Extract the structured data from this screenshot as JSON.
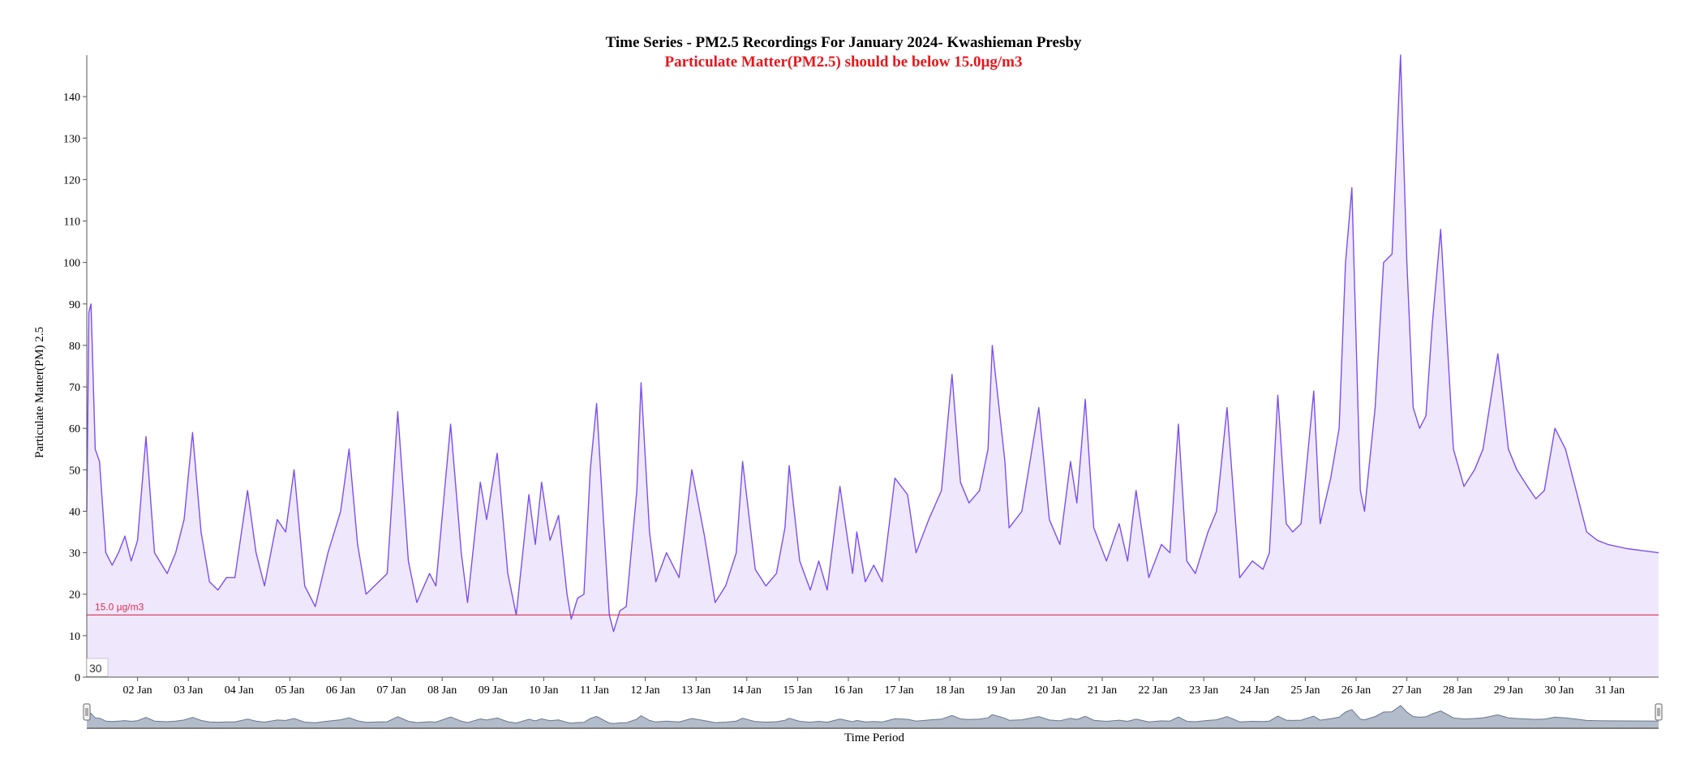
{
  "colors": {
    "line": "#7b4ff0",
    "area": "#efe8fd",
    "threshold": "#d9304f",
    "subtitle": "#e8161b",
    "navigator_fill": "#b3bccb",
    "navigator_line": "#6b778d"
  },
  "navigator": {
    "window_label": "30"
  },
  "chart_data": {
    "type": "area",
    "title": "Time Series - PM2.5 Recordings For January 2024- Kwashieman Presby",
    "subtitle": "Particulate Matter(PM2.5) should be below 15.0µg/m3",
    "xlabel": "Time Period",
    "ylabel": "Particulate Matter(PM) 2.5",
    "ylim": [
      0,
      150
    ],
    "yticks": [
      0,
      10,
      20,
      30,
      40,
      50,
      60,
      70,
      80,
      90,
      100,
      110,
      120,
      130,
      140
    ],
    "xlim": [
      "2024-01-01 00:00",
      "2024-01-31 23:00"
    ],
    "xticks": [
      "02 Jan",
      "03 Jan",
      "04 Jan",
      "05 Jan",
      "06 Jan",
      "07 Jan",
      "08 Jan",
      "09 Jan",
      "10 Jan",
      "11 Jan",
      "12 Jan",
      "13 Jan",
      "14 Jan",
      "15 Jan",
      "16 Jan",
      "17 Jan",
      "18 Jan",
      "19 Jan",
      "20 Jan",
      "21 Jan",
      "22 Jan",
      "23 Jan",
      "24 Jan",
      "25 Jan",
      "26 Jan",
      "27 Jan",
      "28 Jan",
      "29 Jan",
      "30 Jan",
      "31 Jan"
    ],
    "threshold": {
      "value": 15.0,
      "label": "15.0 µg/m3"
    },
    "series": [
      {
        "points": [
          [
            "2024-01-01 00:00",
            40
          ],
          [
            "2024-01-01 01:00",
            88
          ],
          [
            "2024-01-01 02:00",
            90
          ],
          [
            "2024-01-01 04:00",
            55
          ],
          [
            "2024-01-01 06:00",
            52
          ],
          [
            "2024-01-01 09:00",
            30
          ],
          [
            "2024-01-01 12:00",
            27
          ],
          [
            "2024-01-01 15:00",
            30
          ],
          [
            "2024-01-01 18:00",
            34
          ],
          [
            "2024-01-01 21:00",
            28
          ],
          [
            "2024-01-02 00:00",
            33
          ],
          [
            "2024-01-02 04:00",
            58
          ],
          [
            "2024-01-02 08:00",
            30
          ],
          [
            "2024-01-02 14:00",
            25
          ],
          [
            "2024-01-02 18:00",
            30
          ],
          [
            "2024-01-02 22:00",
            38
          ],
          [
            "2024-01-03 02:00",
            59
          ],
          [
            "2024-01-03 06:00",
            35
          ],
          [
            "2024-01-03 10:00",
            23
          ],
          [
            "2024-01-03 14:00",
            21
          ],
          [
            "2024-01-03 18:00",
            24
          ],
          [
            "2024-01-03 22:00",
            24
          ],
          [
            "2024-01-04 04:00",
            45
          ],
          [
            "2024-01-04 08:00",
            30
          ],
          [
            "2024-01-04 12:00",
            22
          ],
          [
            "2024-01-04 18:00",
            38
          ],
          [
            "2024-01-04 22:00",
            35
          ],
          [
            "2024-01-05 02:00",
            50
          ],
          [
            "2024-01-05 07:00",
            22
          ],
          [
            "2024-01-05 12:00",
            17
          ],
          [
            "2024-01-05 18:00",
            30
          ],
          [
            "2024-01-06 00:00",
            40
          ],
          [
            "2024-01-06 04:00",
            55
          ],
          [
            "2024-01-06 08:00",
            32
          ],
          [
            "2024-01-06 12:00",
            20
          ],
          [
            "2024-01-06 18:00",
            23
          ],
          [
            "2024-01-06 22:00",
            25
          ],
          [
            "2024-01-07 03:00",
            64
          ],
          [
            "2024-01-07 08:00",
            28
          ],
          [
            "2024-01-07 12:00",
            18
          ],
          [
            "2024-01-07 18:00",
            25
          ],
          [
            "2024-01-07 21:00",
            22
          ],
          [
            "2024-01-08 04:00",
            61
          ],
          [
            "2024-01-08 09:00",
            30
          ],
          [
            "2024-01-08 12:00",
            18
          ],
          [
            "2024-01-08 18:00",
            47
          ],
          [
            "2024-01-08 21:00",
            38
          ],
          [
            "2024-01-09 02:00",
            54
          ],
          [
            "2024-01-09 07:00",
            25
          ],
          [
            "2024-01-09 11:00",
            15
          ],
          [
            "2024-01-09 17:00",
            44
          ],
          [
            "2024-01-09 20:00",
            32
          ],
          [
            "2024-01-09 23:00",
            47
          ],
          [
            "2024-01-10 03:00",
            33
          ],
          [
            "2024-01-10 07:00",
            39
          ],
          [
            "2024-01-10 11:00",
            20
          ],
          [
            "2024-01-10 13:00",
            14
          ],
          [
            "2024-01-10 16:00",
            19
          ],
          [
            "2024-01-10 19:00",
            20
          ],
          [
            "2024-01-10 22:00",
            50
          ],
          [
            "2024-01-11 01:00",
            66
          ],
          [
            "2024-01-11 04:00",
            40
          ],
          [
            "2024-01-11 07:00",
            15
          ],
          [
            "2024-01-11 09:00",
            11
          ],
          [
            "2024-01-11 12:00",
            16
          ],
          [
            "2024-01-11 15:00",
            17
          ],
          [
            "2024-01-11 20:00",
            45
          ],
          [
            "2024-01-11 22:00",
            71
          ],
          [
            "2024-01-12 02:00",
            35
          ],
          [
            "2024-01-12 05:00",
            23
          ],
          [
            "2024-01-12 10:00",
            30
          ],
          [
            "2024-01-12 16:00",
            24
          ],
          [
            "2024-01-12 22:00",
            50
          ],
          [
            "2024-01-13 04:00",
            34
          ],
          [
            "2024-01-13 09:00",
            18
          ],
          [
            "2024-01-13 14:00",
            22
          ],
          [
            "2024-01-13 19:00",
            30
          ],
          [
            "2024-01-13 22:00",
            52
          ],
          [
            "2024-01-14 04:00",
            26
          ],
          [
            "2024-01-14 09:00",
            22
          ],
          [
            "2024-01-14 14:00",
            25
          ],
          [
            "2024-01-14 18:00",
            36
          ],
          [
            "2024-01-14 20:00",
            51
          ],
          [
            "2024-01-15 01:00",
            28
          ],
          [
            "2024-01-15 06:00",
            21
          ],
          [
            "2024-01-15 10:00",
            28
          ],
          [
            "2024-01-15 14:00",
            21
          ],
          [
            "2024-01-15 20:00",
            46
          ],
          [
            "2024-01-16 02:00",
            25
          ],
          [
            "2024-01-16 04:00",
            35
          ],
          [
            "2024-01-16 08:00",
            23
          ],
          [
            "2024-01-16 12:00",
            27
          ],
          [
            "2024-01-16 16:00",
            23
          ],
          [
            "2024-01-16 22:00",
            48
          ],
          [
            "2024-01-17 04:00",
            44
          ],
          [
            "2024-01-17 08:00",
            30
          ],
          [
            "2024-01-17 14:00",
            38
          ],
          [
            "2024-01-17 20:00",
            45
          ],
          [
            "2024-01-18 01:00",
            73
          ],
          [
            "2024-01-18 05:00",
            47
          ],
          [
            "2024-01-18 09:00",
            42
          ],
          [
            "2024-01-18 14:00",
            45
          ],
          [
            "2024-01-18 18:00",
            55
          ],
          [
            "2024-01-18 20:00",
            80
          ],
          [
            "2024-01-19 02:00",
            52
          ],
          [
            "2024-01-19 04:00",
            36
          ],
          [
            "2024-01-19 10:00",
            40
          ],
          [
            "2024-01-19 18:00",
            65
          ],
          [
            "2024-01-19 23:00",
            38
          ],
          [
            "2024-01-20 04:00",
            32
          ],
          [
            "2024-01-20 09:00",
            52
          ],
          [
            "2024-01-20 12:00",
            42
          ],
          [
            "2024-01-20 16:00",
            67
          ],
          [
            "2024-01-20 20:00",
            36
          ],
          [
            "2024-01-21 02:00",
            28
          ],
          [
            "2024-01-21 08:00",
            37
          ],
          [
            "2024-01-21 12:00",
            28
          ],
          [
            "2024-01-21 16:00",
            45
          ],
          [
            "2024-01-21 22:00",
            24
          ],
          [
            "2024-01-22 04:00",
            32
          ],
          [
            "2024-01-22 08:00",
            30
          ],
          [
            "2024-01-22 12:00",
            61
          ],
          [
            "2024-01-22 16:00",
            28
          ],
          [
            "2024-01-22 20:00",
            25
          ],
          [
            "2024-01-23 02:00",
            35
          ],
          [
            "2024-01-23 06:00",
            40
          ],
          [
            "2024-01-23 11:00",
            65
          ],
          [
            "2024-01-23 17:00",
            24
          ],
          [
            "2024-01-23 23:00",
            28
          ],
          [
            "2024-01-24 04:00",
            26
          ],
          [
            "2024-01-24 07:00",
            30
          ],
          [
            "2024-01-24 11:00",
            68
          ],
          [
            "2024-01-24 15:00",
            37
          ],
          [
            "2024-01-24 18:00",
            35
          ],
          [
            "2024-01-24 22:00",
            37
          ],
          [
            "2024-01-25 04:00",
            69
          ],
          [
            "2024-01-25 07:00",
            37
          ],
          [
            "2024-01-25 12:00",
            48
          ],
          [
            "2024-01-25 16:00",
            60
          ],
          [
            "2024-01-25 19:00",
            100
          ],
          [
            "2024-01-25 22:00",
            118
          ],
          [
            "2024-01-26 02:00",
            45
          ],
          [
            "2024-01-26 04:00",
            40
          ],
          [
            "2024-01-26 09:00",
            65
          ],
          [
            "2024-01-26 13:00",
            100
          ],
          [
            "2024-01-26 17:00",
            102
          ],
          [
            "2024-01-26 21:00",
            150
          ],
          [
            "2024-01-27 00:00",
            100
          ],
          [
            "2024-01-27 03:00",
            65
          ],
          [
            "2024-01-27 06:00",
            60
          ],
          [
            "2024-01-27 09:00",
            63
          ],
          [
            "2024-01-27 12:00",
            85
          ],
          [
            "2024-01-27 16:00",
            108
          ],
          [
            "2024-01-27 22:00",
            55
          ],
          [
            "2024-01-28 03:00",
            46
          ],
          [
            "2024-01-28 08:00",
            50
          ],
          [
            "2024-01-28 12:00",
            55
          ],
          [
            "2024-01-28 19:00",
            78
          ],
          [
            "2024-01-29 00:00",
            55
          ],
          [
            "2024-01-29 04:00",
            50
          ],
          [
            "2024-01-29 09:00",
            46
          ],
          [
            "2024-01-29 13:00",
            43
          ],
          [
            "2024-01-29 17:00",
            45
          ],
          [
            "2024-01-29 22:00",
            60
          ],
          [
            "2024-01-30 03:00",
            55
          ],
          [
            "2024-01-30 08:00",
            45
          ],
          [
            "2024-01-30 13:00",
            35
          ],
          [
            "2024-01-30 18:00",
            33
          ],
          [
            "2024-01-30 23:00",
            32
          ],
          [
            "2024-01-31 08:00",
            31
          ],
          [
            "2024-01-31 23:00",
            30
          ]
        ]
      }
    ]
  }
}
